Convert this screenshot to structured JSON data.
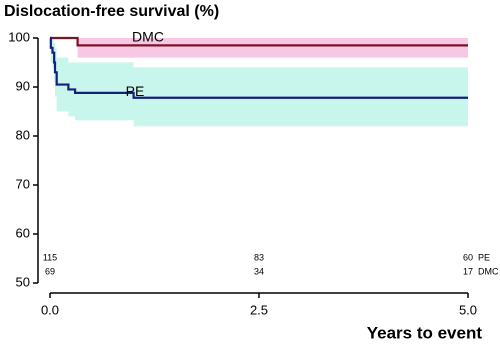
{
  "chart_data": {
    "type": "step",
    "title": "Dislocation-free survival (%)",
    "x_label": "Years to event",
    "xlim": [
      0,
      5
    ],
    "ylim": [
      50,
      100
    ],
    "xticks": [
      {
        "value": 0,
        "label": "0.0"
      },
      2.5,
      {
        "value": 5,
        "label": "5.0"
      }
    ],
    "yticks": [
      50,
      60,
      70,
      80,
      90,
      100
    ],
    "at_risk_x": [
      0,
      2.5,
      5
    ],
    "series": [
      {
        "name": "DMC",
        "color": "#7a1426",
        "band_color": "#f6c8e3",
        "x": [
          0,
          0.33,
          5
        ],
        "values": [
          100,
          98.5,
          98.5
        ],
        "ci_lower": [
          100,
          96,
          96
        ],
        "ci_upper": [
          100,
          100,
          100
        ],
        "at_risk": [
          69,
          34,
          17
        ]
      },
      {
        "name": "PE",
        "color": "#14207a",
        "band_color": "#c8f5ec",
        "x": [
          0,
          0.01,
          0.03,
          0.05,
          0.06,
          0.08,
          0.22,
          0.3,
          1.0,
          5.0
        ],
        "values": [
          100,
          98,
          97,
          95,
          93,
          90.5,
          89.5,
          88.8,
          87.8,
          87.8
        ],
        "ci_lower": [
          100,
          95,
          94,
          91,
          88,
          85,
          84,
          83.2,
          82,
          82
        ],
        "ci_upper": [
          100,
          100,
          100,
          99,
          98,
          96,
          95,
          95,
          94,
          94
        ],
        "at_risk": [
          115,
          83,
          60
        ]
      }
    ]
  }
}
